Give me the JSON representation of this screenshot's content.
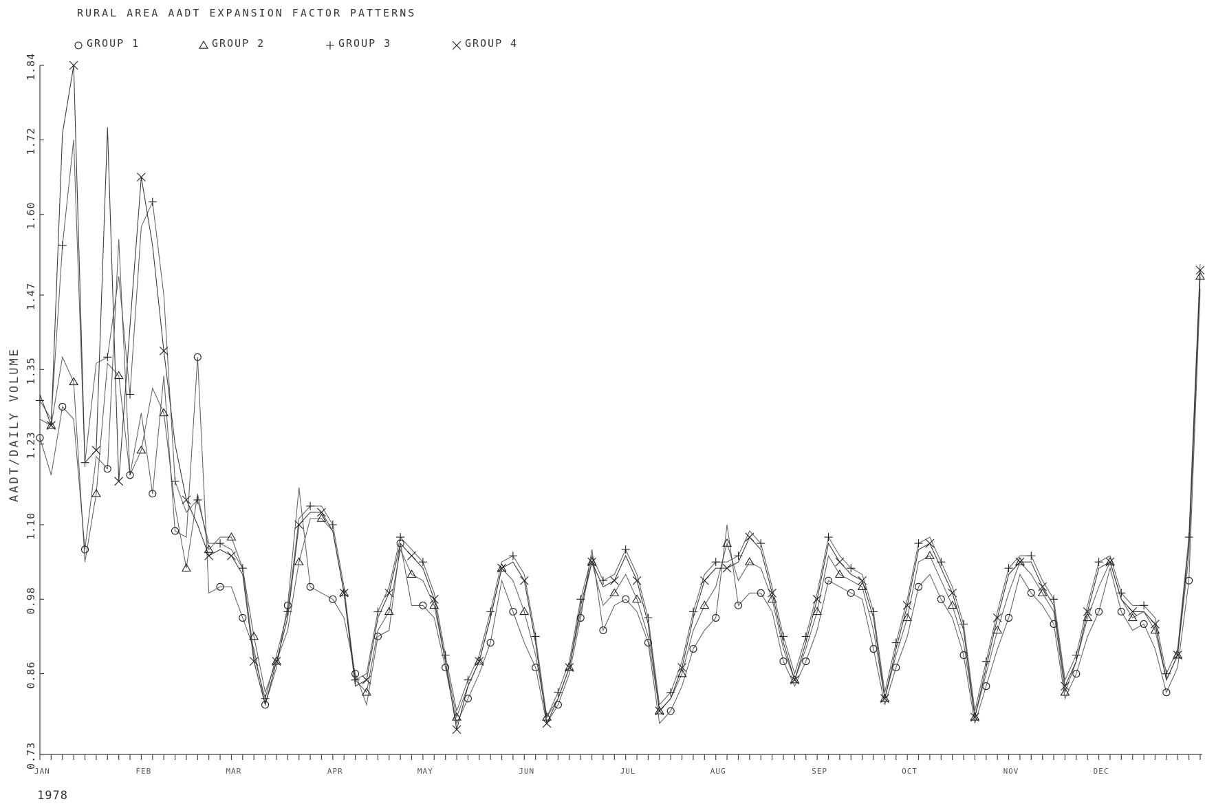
{
  "chart_data": {
    "type": "line",
    "title": "RURAL AREA AADT EXPANSION FACTOR PATTERNS",
    "ylabel": "AADT/DAILY VOLUME",
    "xlabel": "",
    "year_label": "1978",
    "ylim": [
      0.73,
      1.84
    ],
    "yticks": [
      "0.73",
      "0.86",
      "0.98",
      "1.10",
      "1.23",
      "1.35",
      "1.47",
      "1.60",
      "1.72",
      "1.84"
    ],
    "month_labels": [
      "JAN",
      "FEB",
      "MAR",
      "APR",
      "MAY",
      "JUN",
      "JUL",
      "AUG",
      "SEP",
      "OCT",
      "NOV",
      "DEC"
    ],
    "legend_position": "top",
    "series": [
      {
        "name": "GROUP 1",
        "marker": "circle",
        "values": [
          1.24,
          1.18,
          1.29,
          1.27,
          1.06,
          1.21,
          1.19,
          1.56,
          1.18,
          1.28,
          1.15,
          1.34,
          1.09,
          1.08,
          1.37,
          0.99,
          1.0,
          1.0,
          0.95,
          0.9,
          0.81,
          0.87,
          0.97,
          1.16,
          1.0,
          0.99,
          0.98,
          0.95,
          0.86,
          0.81,
          0.92,
          0.93,
          1.07,
          0.97,
          0.97,
          0.95,
          0.87,
          0.78,
          0.82,
          0.86,
          0.91,
          1.01,
          0.96,
          0.91,
          0.87,
          0.78,
          0.81,
          0.86,
          0.95,
          1.06,
          0.93,
          0.97,
          0.98,
          0.96,
          0.91,
          0.78,
          0.8,
          0.84,
          0.9,
          0.93,
          0.95,
          1.1,
          0.97,
          0.99,
          0.99,
          0.96,
          0.88,
          0.84,
          0.88,
          0.93,
          1.01,
          1.0,
          0.99,
          0.98,
          0.9,
          0.81,
          0.87,
          0.92,
          1.0,
          1.02,
          0.98,
          0.95,
          0.89,
          0.78,
          0.84,
          0.9,
          0.95,
          1.02,
          0.99,
          0.97,
          0.94,
          0.82,
          0.86,
          0.92,
          0.96,
          1.03,
          0.96,
          0.93,
          0.94,
          0.9,
          0.83,
          0.87,
          1.01,
          1.48
        ],
        "color": "#222222"
      },
      {
        "name": "GROUP 2",
        "marker": "triangle",
        "values": [
          1.27,
          1.26,
          1.37,
          1.33,
          1.04,
          1.15,
          1.36,
          1.34,
          1.18,
          1.22,
          1.32,
          1.28,
          1.13,
          1.03,
          1.15,
          1.06,
          1.08,
          1.08,
          1.03,
          0.92,
          0.83,
          0.88,
          0.93,
          1.04,
          1.11,
          1.11,
          1.09,
          0.99,
          0.85,
          0.83,
          0.93,
          0.96,
          1.06,
          1.02,
          1.01,
          0.97,
          0.88,
          0.79,
          0.84,
          0.88,
          0.95,
          1.03,
          1.01,
          0.96,
          0.89,
          0.79,
          0.82,
          0.87,
          0.96,
          1.04,
          0.97,
          0.99,
          1.02,
          0.98,
          0.92,
          0.8,
          0.82,
          0.86,
          0.93,
          0.97,
          1.0,
          1.07,
          1.01,
          1.04,
          1.03,
          0.98,
          0.9,
          0.85,
          0.9,
          0.96,
          1.05,
          1.02,
          1.01,
          1.0,
          0.93,
          0.82,
          0.89,
          0.95,
          1.04,
          1.05,
          1.01,
          0.97,
          0.91,
          0.79,
          0.86,
          0.93,
          0.99,
          1.04,
          1.02,
          0.99,
          0.96,
          0.83,
          0.88,
          0.95,
          1.0,
          1.04,
          0.98,
          0.95,
          0.96,
          0.93,
          0.85,
          0.89,
          1.05,
          1.5
        ],
        "color": "#333333"
      },
      {
        "name": "GROUP 3",
        "marker": "plus",
        "values": [
          1.3,
          1.27,
          1.55,
          1.72,
          1.2,
          1.36,
          1.37,
          1.5,
          1.31,
          1.58,
          1.62,
          1.47,
          1.17,
          1.12,
          1.14,
          1.07,
          1.07,
          1.06,
          1.03,
          0.89,
          0.82,
          0.89,
          0.96,
          1.11,
          1.13,
          1.13,
          1.1,
          1.0,
          0.85,
          0.86,
          0.96,
          1.0,
          1.08,
          1.06,
          1.04,
          0.99,
          0.89,
          0.8,
          0.85,
          0.89,
          0.96,
          1.04,
          1.05,
          1.02,
          0.92,
          0.79,
          0.83,
          0.88,
          0.98,
          1.05,
          1.01,
          1.02,
          1.06,
          1.02,
          0.95,
          0.81,
          0.83,
          0.88,
          0.96,
          1.02,
          1.04,
          1.04,
          1.05,
          1.09,
          1.07,
          1.0,
          0.92,
          0.86,
          0.92,
          0.99,
          1.08,
          1.05,
          1.03,
          1.02,
          0.96,
          0.83,
          0.91,
          0.98,
          1.07,
          1.08,
          1.04,
          1.0,
          0.94,
          0.8,
          0.88,
          0.96,
          1.03,
          1.05,
          1.05,
          1.01,
          0.98,
          0.85,
          0.89,
          0.97,
          1.04,
          1.05,
          0.99,
          0.97,
          0.97,
          0.95,
          0.86,
          0.9,
          1.08,
          1.52
        ],
        "color": "#333333"
      },
      {
        "name": "GROUP 4",
        "marker": "x",
        "values": [
          1.31,
          1.26,
          1.73,
          1.84,
          1.2,
          1.22,
          1.74,
          1.17,
          1.42,
          1.66,
          1.55,
          1.38,
          1.23,
          1.14,
          1.1,
          1.05,
          1.06,
          1.05,
          1.02,
          0.88,
          0.81,
          0.88,
          0.95,
          1.1,
          1.12,
          1.12,
          1.09,
          0.99,
          0.84,
          0.85,
          0.95,
          0.99,
          1.07,
          1.05,
          1.03,
          0.98,
          0.88,
          0.77,
          0.84,
          0.88,
          0.95,
          1.03,
          1.04,
          1.01,
          0.91,
          0.78,
          0.82,
          0.87,
          0.97,
          1.04,
          1.0,
          1.01,
          1.05,
          1.01,
          0.94,
          0.8,
          0.82,
          0.87,
          0.95,
          1.01,
          1.03,
          1.03,
          1.04,
          1.08,
          1.06,
          0.99,
          0.91,
          0.85,
          0.91,
          0.98,
          1.07,
          1.04,
          1.02,
          1.01,
          0.95,
          0.82,
          0.9,
          0.97,
          1.06,
          1.07,
          1.03,
          0.99,
          0.93,
          0.79,
          0.87,
          0.95,
          1.02,
          1.04,
          1.04,
          1.0,
          0.97,
          0.84,
          0.88,
          0.96,
          1.03,
          1.04,
          0.98,
          0.96,
          0.96,
          0.94,
          0.85,
          0.89,
          1.07,
          1.51
        ],
        "color": "#111111"
      }
    ]
  }
}
